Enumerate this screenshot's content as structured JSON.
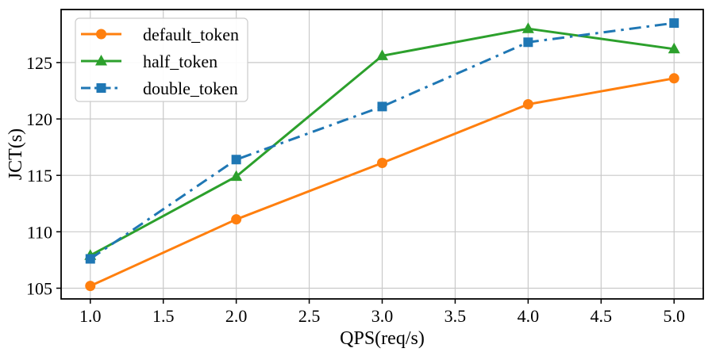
{
  "chart_data": {
    "type": "line",
    "title": "",
    "xlabel": "QPS(req/s)",
    "ylabel": "JCT(s)",
    "x": [
      1.0,
      2.0,
      3.0,
      4.0,
      5.0
    ],
    "xlim": [
      0.8,
      5.2
    ],
    "ylim": [
      104.05,
      129.7
    ],
    "xticks": [
      1.0,
      1.5,
      2.0,
      2.5,
      3.0,
      3.5,
      4.0,
      4.5,
      5.0
    ],
    "yticks": [
      105,
      110,
      115,
      120,
      125
    ],
    "xtick_labels": [
      "1.0",
      "1.5",
      "2.0",
      "2.5",
      "3.0",
      "3.5",
      "4.0",
      "4.5",
      "5.0"
    ],
    "ytick_labels": [
      "105",
      "110",
      "115",
      "120",
      "125"
    ],
    "grid": true,
    "grid_color": "#c9c9c9",
    "spine_color": "#000000",
    "legend_position": "upper left",
    "series": [
      {
        "name": "default_token",
        "color": "#ff7f0e",
        "marker": "circle",
        "linestyle": "solid",
        "values": [
          105.2,
          111.1,
          116.1,
          121.3,
          123.6
        ]
      },
      {
        "name": "half_token",
        "color": "#2ca02c",
        "marker": "triangle",
        "linestyle": "solid",
        "values": [
          107.9,
          114.9,
          125.6,
          128.0,
          126.2
        ]
      },
      {
        "name": "double_token",
        "color": "#1f77b4",
        "marker": "square",
        "linestyle": "dashdot",
        "values": [
          107.6,
          116.4,
          121.1,
          126.8,
          128.5
        ]
      }
    ]
  }
}
